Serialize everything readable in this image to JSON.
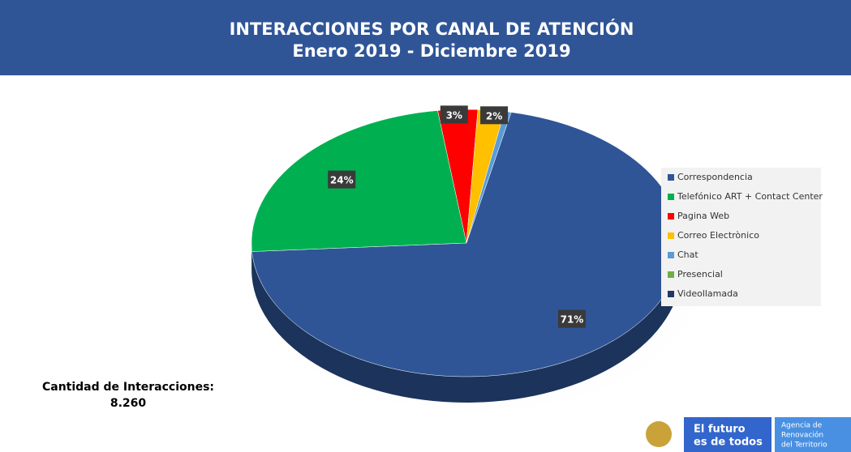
{
  "chart_data": {
    "type": "pie",
    "title": "INTERACCIONES POR CANAL DE ATENCIÓN",
    "subtitle": "Enero 2019 - Diciembre 2019",
    "categories": [
      "Correspondencia",
      "Telefónico ART + Contact Center",
      "Pagina Web",
      "Correo Electrònico",
      "Chat",
      "Presencial",
      "Videollamada"
    ],
    "values": [
      71,
      24,
      3,
      2,
      0.5,
      0,
      0
    ],
    "colors": [
      "#2f5597",
      "#00b050",
      "#ff0000",
      "#ffc000",
      "#5b9bd5",
      "#70ad47",
      "#1f3864"
    ],
    "legend": "right"
  },
  "summary": {
    "label": "Cantidad de Interacciones:",
    "value": "8.260"
  },
  "footer": {
    "slogan_line1": "El futuro",
    "slogan_line2": "es de todos",
    "agency_line1": "Agencia de",
    "agency_line2": "Renovación",
    "agency_line3": "del Territorio"
  }
}
